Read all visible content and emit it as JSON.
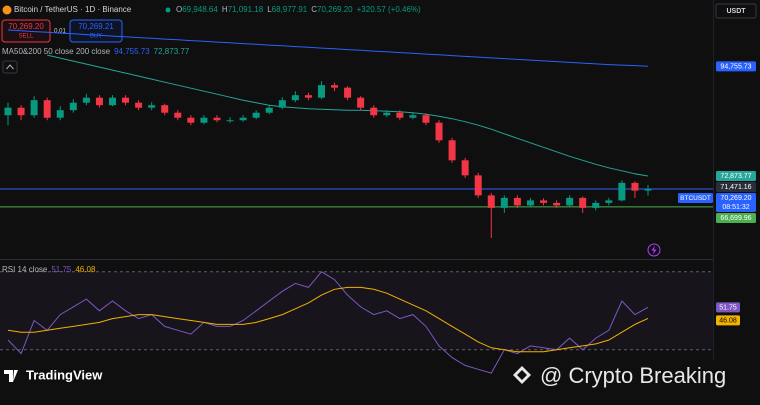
{
  "header": {
    "symbol": "Bitcoin / TetherUS · 1D · Binance",
    "ohlc": [
      {
        "key": "O",
        "value": "69,948.64"
      },
      {
        "key": "H",
        "value": "71,091.18"
      },
      {
        "key": "L",
        "value": "68,977.91"
      },
      {
        "key": "C",
        "value": "70,269.20"
      }
    ],
    "change": "+320.57 (+0.46%)",
    "sell_price": "70,269.20",
    "sell": "SELL",
    "quantity": "0.01",
    "buy_price": "70,269.21",
    "buy": "BUY",
    "currency": "USDT"
  },
  "chart_data": {
    "type": "candlestick",
    "indicator_label": "MA50&200 50 close 200 close",
    "up_color": "#089981",
    "down_color": "#f23645",
    "ylim": [
      56500,
      107000
    ],
    "candles": {
      "open": [
        85000,
        86500,
        85000,
        88000,
        84500,
        86000,
        87500,
        88500,
        87000,
        88500,
        87500,
        86500,
        87000,
        85500,
        84500,
        83500,
        84500,
        84000,
        84000,
        84500,
        85500,
        86500,
        88000,
        89000,
        88500,
        91000,
        90500,
        88500,
        86500,
        85000,
        85500,
        84500,
        85000,
        83500,
        80000,
        76000,
        73000,
        69000,
        66500,
        68500,
        67000,
        68000,
        67500,
        67000,
        68500,
        66500,
        67500,
        68000,
        71500,
        69948.64
      ],
      "high": [
        87500,
        87000,
        88800,
        88500,
        86800,
        88200,
        89300,
        89000,
        89000,
        89000,
        88000,
        87600,
        87300,
        86000,
        85000,
        85000,
        85000,
        84600,
        85000,
        86000,
        87000,
        88600,
        89800,
        89500,
        91800,
        91500,
        90800,
        88800,
        87000,
        86000,
        86000,
        85600,
        85400,
        84000,
        80500,
        76500,
        73500,
        69500,
        69000,
        69000,
        68500,
        68400,
        68000,
        69000,
        68800,
        68000,
        68500,
        72000,
        71800,
        71091.18
      ],
      "low": [
        83000,
        84000,
        84500,
        84000,
        84000,
        85500,
        87000,
        86500,
        86800,
        87000,
        86000,
        86000,
        85000,
        84000,
        83000,
        83200,
        83600,
        83500,
        83700,
        84200,
        85200,
        86200,
        87600,
        88000,
        88200,
        89800,
        88000,
        86000,
        84500,
        84600,
        84000,
        84200,
        83000,
        79500,
        75500,
        72500,
        68500,
        60500,
        65500,
        66500,
        66600,
        67000,
        66500,
        66800,
        65500,
        66000,
        67000,
        67800,
        68500,
        68977.91
      ],
      "close": [
        86500,
        85000,
        88000,
        84500,
        86000,
        87500,
        88500,
        87000,
        88500,
        87500,
        86500,
        87000,
        85500,
        84500,
        83500,
        84500,
        84000,
        84000,
        84500,
        85500,
        86500,
        88000,
        89000,
        88500,
        91000,
        90500,
        88500,
        86500,
        85000,
        85500,
        84500,
        85000,
        83500,
        80000,
        76000,
        73000,
        69000,
        66500,
        68500,
        67000,
        68000,
        67500,
        67000,
        68500,
        66500,
        67500,
        68000,
        71500,
        69948.64,
        70269.2
      ]
    },
    "moving_averages": [
      {
        "color": "#2962ff",
        "values": [
          102000,
          101850,
          101700,
          101550,
          101400,
          101250,
          101100,
          100950,
          100800,
          100650,
          100500,
          100350,
          100200,
          100050,
          99900,
          99750,
          99600,
          99450,
          99300,
          99150,
          99000,
          98850,
          98700,
          98550,
          98400,
          98250,
          98100,
          97950,
          97800,
          97650,
          97500,
          97350,
          97200,
          97050,
          96900,
          96750,
          96600,
          96450,
          96300,
          96150,
          96000,
          95850,
          95700,
          95550,
          95400,
          95250,
          95100,
          95000,
          94900,
          94755.73
        ],
        "last_label": {
          "value": 94755.73,
          "label": "94,755.73"
        }
      },
      {
        "color": "#26a69a",
        "values": [
          null,
          null,
          null,
          97000,
          96400,
          95800,
          95200,
          94600,
          94000,
          93400,
          92800,
          92200,
          91600,
          91000,
          90400,
          89800,
          89200,
          88600,
          88000,
          87500,
          87000,
          86700,
          86500,
          86300,
          86200,
          86100,
          86000,
          86000,
          85900,
          85800,
          85700,
          85500,
          85200,
          84800,
          84300,
          83700,
          83000,
          82200,
          81300,
          80400,
          79500,
          78600,
          77700,
          76800,
          76000,
          75200,
          74500,
          73900,
          73300,
          72873.77
        ],
        "last_label": {
          "value": 72873.77,
          "label": "72,873.77"
        }
      }
    ],
    "price_lines": [
      {
        "value": 70269.2,
        "label": "70,269.20",
        "color": "#2962ff",
        "show_line": true,
        "tag": "BTCUSDT",
        "countdown": "08:51:32"
      },
      {
        "value": 71471.16,
        "label": "71,471.16",
        "color": "#2a2e39",
        "show_line": false
      },
      {
        "value": 66699.96,
        "label": "66,699.96",
        "color": "#4caf50",
        "show_line": true
      }
    ],
    "rsi": {
      "label": "RSI 14 close",
      "ylim": [
        15,
        75
      ],
      "levels": [
        70,
        30
      ],
      "color": "#7e57c2",
      "ma_color": "#f2b200",
      "values": [
        35,
        28,
        45,
        40,
        48,
        52,
        56,
        50,
        55,
        50,
        46,
        48,
        42,
        40,
        38,
        44,
        42,
        42,
        45,
        50,
        55,
        60,
        64,
        62,
        70,
        66,
        58,
        52,
        48,
        50,
        46,
        48,
        42,
        32,
        26,
        22,
        20,
        18,
        30,
        28,
        32,
        31,
        30,
        36,
        30,
        36,
        40,
        55,
        48,
        51.75
      ],
      "ma_values": [
        40,
        39,
        39,
        40,
        41,
        42,
        43,
        44,
        46,
        47,
        48,
        48,
        47,
        46,
        45,
        44,
        43,
        43,
        43,
        44,
        46,
        48,
        51,
        54,
        58,
        61,
        62,
        62,
        61,
        59,
        56,
        53,
        50,
        46,
        42,
        38,
        34,
        31,
        30,
        29,
        29,
        29,
        30,
        31,
        32,
        33,
        35,
        39,
        43,
        46.08
      ],
      "last_label": {
        "value": 51.75,
        "label": "51.75"
      },
      "ma_last_label": {
        "value": 46.08,
        "label": "46.08"
      }
    }
  },
  "branding": "TradingView",
  "watermark": "@ Crypto Breaking"
}
